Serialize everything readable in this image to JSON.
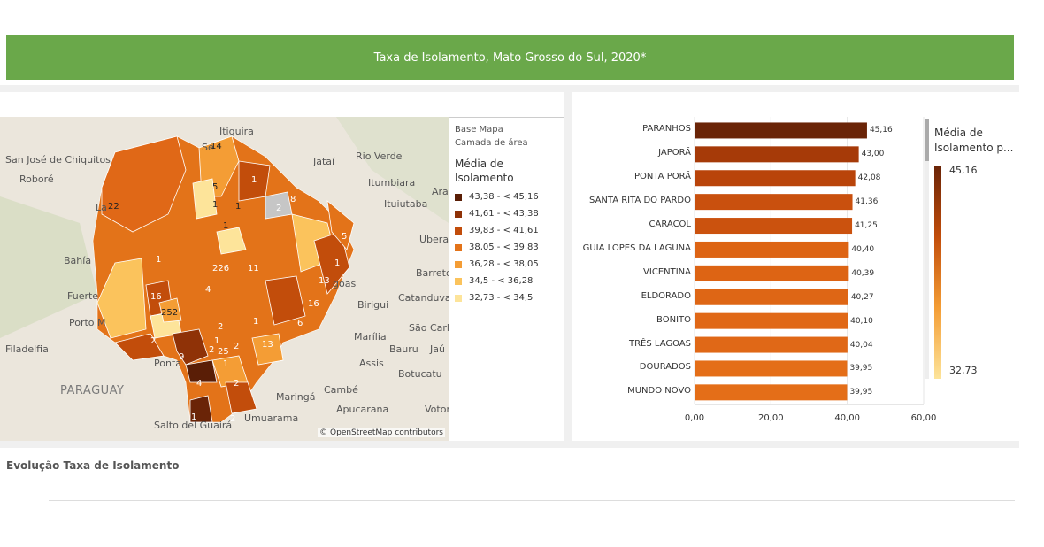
{
  "header": {
    "title": "Taxa de Isolamento, Mato Grosso do Sul, 2020*"
  },
  "map": {
    "places": [
      "Itiquira",
      "San José de Chiquitos",
      "Roboré",
      "Jataí",
      "Rio Verde",
      "Itumbiara",
      "Ituiutaba",
      "Uberaba",
      "Barretos",
      "Bahía",
      "Fuerte",
      "Porto M",
      "Birigui",
      "Catanduva",
      "Marília",
      "São Carlos",
      "Bauru",
      "Jaú",
      "Filadelfia",
      "PARAGUAY",
      "Assis",
      "Botucatu",
      "Maringá",
      "Cambé",
      "Apucarana",
      "Votorantim",
      "Salto del Guairá",
      "Umuarama",
      "Ponta",
      "goas",
      "Ara",
      "La",
      "Se"
    ],
    "attribution": "© OpenStreetMap contributors",
    "region_labels": [
      "14",
      "1",
      "5",
      "1",
      "1",
      "8",
      "2",
      "1",
      "5",
      "1",
      "226",
      "11",
      "1",
      "16",
      "252",
      "4",
      "13",
      "16",
      "6",
      "2",
      "9",
      "2",
      "1",
      "2",
      "13",
      "25",
      "2",
      "4",
      "2",
      "1",
      "2",
      "1",
      "22",
      "1"
    ]
  },
  "map_legend": {
    "base_label": "Base Mapa",
    "layer_label": "Camada de área",
    "title": "Média de Isolamento",
    "items": [
      {
        "label": "43,38 - < 45,16",
        "color": "#5a1e06"
      },
      {
        "label": "41,61 - < 43,38",
        "color": "#8f3207"
      },
      {
        "label": "39,83 - < 41,61",
        "color": "#c24d0b"
      },
      {
        "label": "38,05 - < 39,83",
        "color": "#e37319"
      },
      {
        "label": "36,28 - < 38,05",
        "color": "#f49d35"
      },
      {
        "label": "34,5 - < 36,28",
        "color": "#fbc35c"
      },
      {
        "label": "32,73 - < 34,5",
        "color": "#fde49a"
      }
    ]
  },
  "chart_data": {
    "type": "bar",
    "orientation": "horizontal",
    "categories": [
      "PARANHOS",
      "JAPORÃ",
      "PONTA PORÃ",
      "SANTA RITA DO PARDO",
      "CARACOL",
      "GUIA LOPES DA LAGUNA",
      "VICENTINA",
      "ELDORADO",
      "BONITO",
      "TRÊS LAGOAS",
      "DOURADOS",
      "MUNDO NOVO"
    ],
    "values": [
      45.16,
      43.0,
      42.08,
      41.36,
      41.25,
      40.4,
      40.39,
      40.27,
      40.1,
      40.04,
      39.95,
      39.95
    ],
    "value_labels": [
      "45,16",
      "43,00",
      "42,08",
      "41,36",
      "41,25",
      "40,40",
      "40,39",
      "40,27",
      "40,10",
      "40,04",
      "39,95",
      "39,95"
    ],
    "colors": [
      "#6a2407",
      "#a63a08",
      "#b9440a",
      "#c9500e",
      "#cb520e",
      "#dd6414",
      "#dd6414",
      "#de6615",
      "#e06817",
      "#e06817",
      "#e46e18",
      "#e46e18"
    ],
    "xlim": [
      0,
      60
    ],
    "x_ticks": [
      "0,00",
      "20,00",
      "40,00",
      "60,00"
    ],
    "legend_title": "Média de Isolamento p...",
    "legend_max": "45,16",
    "legend_min": "32,73"
  },
  "footer": {
    "section_title": "Evolução Taxa de Isolamento"
  }
}
